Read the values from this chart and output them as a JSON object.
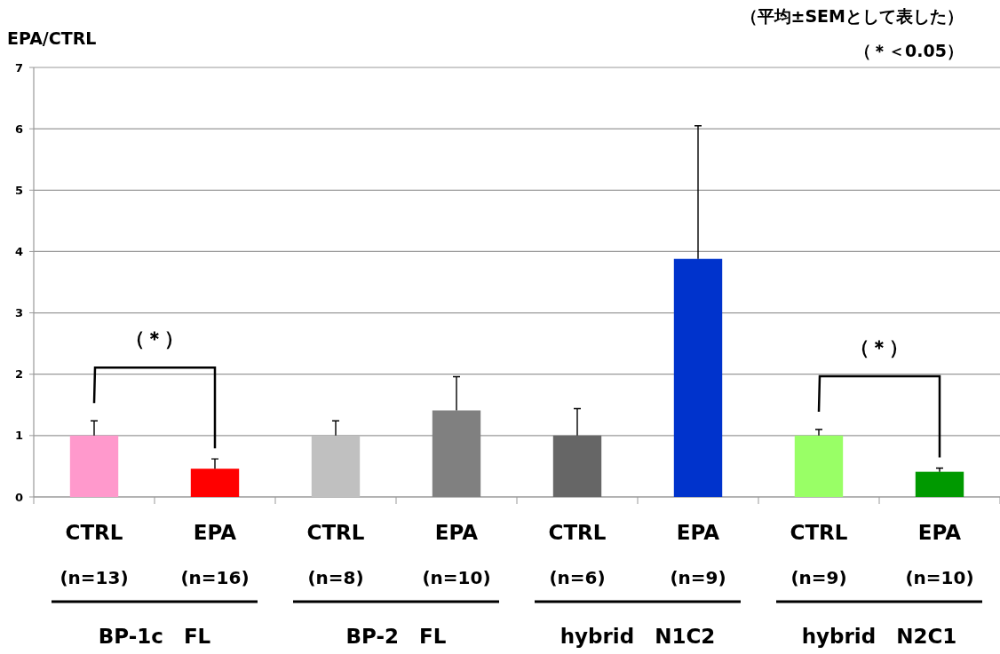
{
  "chart_data": {
    "type": "bar",
    "ylabel": "EPA/CTRL",
    "categories": [
      "CTRL\n(n=13)",
      "EPA\n(n=16)",
      "CTRL\n(n=8)",
      "EPA\n(n=10)",
      "CTRL\n(n=6)",
      "EPA\n(n=9)",
      "CTRL\n(n=9)",
      "EPA\n(n=10)"
    ],
    "values": [
      1.0,
      0.46,
      1.0,
      1.41,
      1.0,
      3.88,
      1.0,
      0.41
    ],
    "colors": [
      "#ff99cc",
      "#ff0000",
      "#c0c0c0",
      "#808080",
      "#666666",
      "#0033cc",
      "#99ff66",
      "#009900"
    ],
    "errors": [
      [
        1.0,
        1.24
      ],
      [
        0.46,
        0.62
      ],
      [
        1.0,
        1.24
      ],
      [
        1.41,
        1.96
      ],
      [
        1.0,
        1.44
      ],
      [
        3.88,
        6.05
      ],
      [
        1.0,
        1.1
      ],
      [
        0.41,
        0.47
      ]
    ],
    "ylim": [
      0,
      7
    ],
    "yticks": [
      0,
      1,
      2,
      3,
      4,
      5,
      6,
      7
    ],
    "grid": "y",
    "annotations": [
      "（平均±SEMとして表した）",
      "（＊＜0.05）",
      "（＊）",
      "（＊）",
      "BP-1c　FL",
      "BP-2　FL",
      "hybrid　N1C2",
      "hybrid　N2C1"
    ]
  }
}
